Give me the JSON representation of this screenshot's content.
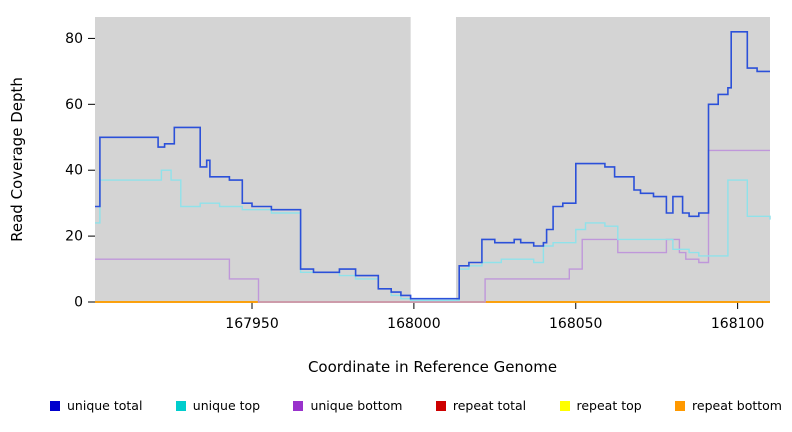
{
  "chart_data": {
    "type": "line",
    "style": "step-after",
    "title": "",
    "xlabel": "Coordinate in Reference Genome",
    "ylabel": "Read Coverage Depth",
    "xlim": [
      167901.5,
      168110
    ],
    "ylim": [
      0,
      86.5
    ],
    "xticks": [
      167950,
      168000,
      168050,
      168100
    ],
    "yticks": [
      0,
      20,
      40,
      60,
      80
    ],
    "grid": false,
    "legend_position": "bottom",
    "plot_background": "#d4d4d4",
    "masked_region": {
      "x0": 167999,
      "x1": 168013,
      "color": "#ffffff"
    },
    "series": [
      {
        "name": "unique total",
        "color": "#2b50d9",
        "legend_color": "#0000cd",
        "points": [
          [
            167901.5,
            29
          ],
          [
            167903,
            50
          ],
          [
            167921,
            47
          ],
          [
            167923,
            48
          ],
          [
            167926,
            53
          ],
          [
            167934,
            41
          ],
          [
            167936,
            43
          ],
          [
            167937,
            38
          ],
          [
            167943,
            37
          ],
          [
            167947,
            30
          ],
          [
            167950,
            29
          ],
          [
            167956,
            28
          ],
          [
            167965,
            10
          ],
          [
            167969,
            9
          ],
          [
            167977,
            10
          ],
          [
            167982,
            8
          ],
          [
            167989,
            4
          ],
          [
            167993,
            3
          ],
          [
            167996,
            2
          ],
          [
            167999,
            1
          ],
          [
            168013,
            1
          ],
          [
            168014,
            11
          ],
          [
            168017,
            12
          ],
          [
            168021,
            19
          ],
          [
            168025,
            18
          ],
          [
            168031,
            19
          ],
          [
            168033,
            18
          ],
          [
            168037,
            17
          ],
          [
            168040,
            18
          ],
          [
            168041,
            22
          ],
          [
            168043,
            29
          ],
          [
            168046,
            30
          ],
          [
            168050,
            42
          ],
          [
            168059,
            41
          ],
          [
            168062,
            38
          ],
          [
            168068,
            34
          ],
          [
            168070,
            33
          ],
          [
            168074,
            32
          ],
          [
            168078,
            27
          ],
          [
            168080,
            32
          ],
          [
            168083,
            27
          ],
          [
            168085,
            26
          ],
          [
            168088,
            27
          ],
          [
            168091,
            60
          ],
          [
            168094,
            63
          ],
          [
            168097,
            65
          ],
          [
            168098,
            82
          ],
          [
            168103,
            71
          ],
          [
            168106,
            70
          ],
          [
            168110,
            70
          ]
        ]
      },
      {
        "name": "unique top",
        "color": "#8fe2ea",
        "legend_color": "#00cdcd",
        "points": [
          [
            167901.5,
            24
          ],
          [
            167903,
            37
          ],
          [
            167921,
            37
          ],
          [
            167922,
            40
          ],
          [
            167925,
            37
          ],
          [
            167928,
            29
          ],
          [
            167934,
            30
          ],
          [
            167940,
            29
          ],
          [
            167947,
            28
          ],
          [
            167956,
            27
          ],
          [
            167965,
            9
          ],
          [
            167977,
            8
          ],
          [
            167982,
            7
          ],
          [
            167989,
            4
          ],
          [
            167993,
            2
          ],
          [
            167996,
            1
          ],
          [
            167999,
            0.5
          ],
          [
            168013,
            0.5
          ],
          [
            168014,
            10
          ],
          [
            168017,
            11
          ],
          [
            168021,
            12
          ],
          [
            168027,
            13
          ],
          [
            168037,
            12
          ],
          [
            168040,
            17
          ],
          [
            168043,
            18
          ],
          [
            168050,
            22
          ],
          [
            168053,
            24
          ],
          [
            168059,
            23
          ],
          [
            168063,
            19
          ],
          [
            168078,
            19
          ],
          [
            168080,
            16
          ],
          [
            168085,
            15
          ],
          [
            168088,
            14
          ],
          [
            168097,
            37
          ],
          [
            168103,
            26
          ],
          [
            168110,
            25
          ]
        ]
      },
      {
        "name": "unique bottom",
        "color": "#bf97da",
        "legend_color": "#9932cc",
        "points": [
          [
            167901.5,
            13
          ],
          [
            167943,
            7
          ],
          [
            167952,
            0
          ],
          [
            168022,
            7
          ],
          [
            168048,
            10
          ],
          [
            168052,
            19
          ],
          [
            168063,
            15
          ],
          [
            168078,
            19
          ],
          [
            168082,
            15
          ],
          [
            168084,
            13
          ],
          [
            168088,
            12
          ],
          [
            168091,
            46
          ],
          [
            168110,
            46
          ]
        ]
      },
      {
        "name": "repeat total",
        "color": "#cd0000",
        "legend_color": "#cd0000",
        "points": [
          [
            167901.5,
            0
          ],
          [
            168110,
            0
          ]
        ]
      },
      {
        "name": "repeat top",
        "color": "#ffff00",
        "legend_color": "#ffff00",
        "points": [
          [
            167901.5,
            0
          ],
          [
            168110,
            0
          ]
        ]
      },
      {
        "name": "repeat bottom",
        "color": "#ff9900",
        "legend_color": "#ff9900",
        "points": [
          [
            167901.5,
            0
          ],
          [
            168110,
            0
          ]
        ]
      }
    ]
  }
}
